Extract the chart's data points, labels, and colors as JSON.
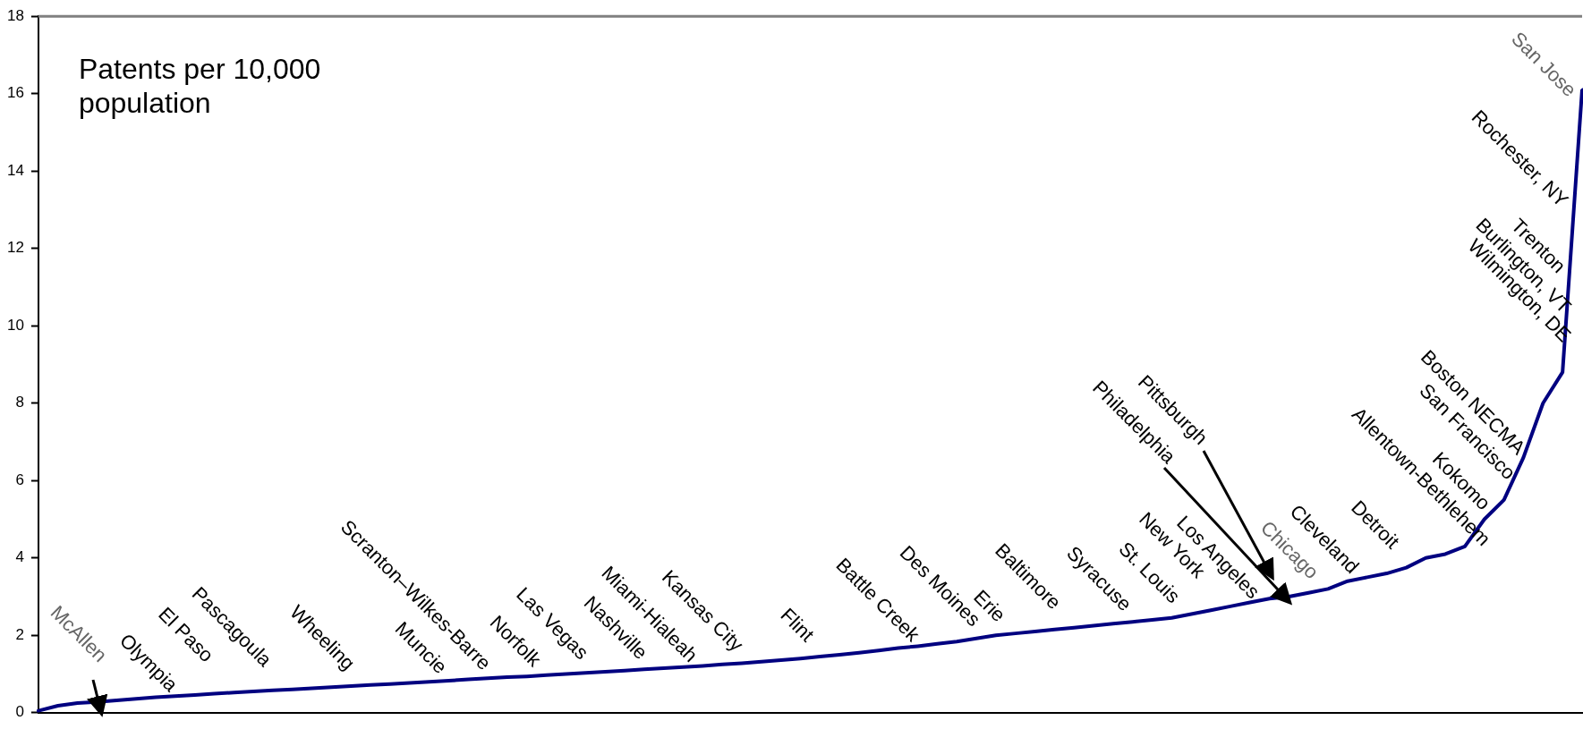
{
  "chart_data": {
    "type": "line",
    "title": "Patents per 10,000 population",
    "categories": [
      null,
      null,
      null,
      null,
      null,
      null,
      null,
      null,
      null,
      null,
      null,
      null,
      null,
      null,
      null,
      null,
      null,
      null,
      null,
      null,
      null,
      null,
      null,
      null,
      null,
      null,
      null,
      null,
      null,
      null,
      null,
      null,
      null,
      null,
      null,
      null,
      null,
      null,
      null,
      null,
      null,
      null,
      null,
      null,
      null,
      null,
      null,
      null,
      null,
      null,
      null,
      null,
      null,
      null,
      null,
      null,
      null,
      null,
      null,
      null,
      null,
      null,
      null,
      null,
      null,
      null,
      null,
      null,
      null,
      null,
      null,
      null,
      null,
      null,
      null,
      null,
      null,
      null,
      null,
      null
    ],
    "series": [
      {
        "color": "#000080",
        "values": [
          0.05,
          0.18,
          0.25,
          0.28,
          0.32,
          0.36,
          0.4,
          0.43,
          0.46,
          0.49,
          0.52,
          0.55,
          0.58,
          0.6,
          0.63,
          0.66,
          0.69,
          0.72,
          0.74,
          0.77,
          0.8,
          0.83,
          0.86,
          0.89,
          0.92,
          0.94,
          0.97,
          1.0,
          1.03,
          1.06,
          1.09,
          1.12,
          1.15,
          1.18,
          1.21,
          1.25,
          1.28,
          1.32,
          1.36,
          1.4,
          1.45,
          1.5,
          1.55,
          1.61,
          1.67,
          1.72,
          1.78,
          1.84,
          1.92,
          2.0,
          2.05,
          2.1,
          2.15,
          2.2,
          2.25,
          2.3,
          2.35,
          2.4,
          2.45,
          2.55,
          2.65,
          2.75,
          2.85,
          2.95,
          3.0,
          3.1,
          3.2,
          3.4,
          3.5,
          3.6,
          3.75,
          4.0,
          4.1,
          4.3,
          5.0,
          5.5,
          6.6,
          8.0,
          8.8,
          16.1
        ]
      }
    ],
    "ylim": [
      0,
      18
    ],
    "yticks": [
      0,
      2,
      4,
      6,
      8,
      10,
      12,
      14,
      16,
      18
    ],
    "grid": false,
    "legend": false,
    "marker": "none",
    "line_style": "solid",
    "tick_labels": "y",
    "annotations": [
      "McAllen",
      "Olympia",
      "El Paso",
      "Pascagoula",
      "Wheeling",
      "Muncie",
      "Scranton–Wilkes-Barre",
      "Norfolk",
      "Las Vegas",
      "Nashville",
      "Miami-Hialeah",
      "Kansas City",
      "Flint",
      "Battle Creek",
      "Des Moines",
      "Erie",
      "Baltimore",
      "Syracuse",
      "St. Louis",
      "New York",
      "Los Angeles",
      "Philadelphia",
      "Pittsburgh",
      "Chicago",
      "Cleveland",
      "Detroit",
      "Allentown-Bethlehem",
      "Kokomo",
      "San Francisco",
      "Boston NECMA",
      "Wilmington, DE",
      "Burlington, VT",
      "Trenton",
      "Rochester, NY",
      "San Jose"
    ]
  }
}
